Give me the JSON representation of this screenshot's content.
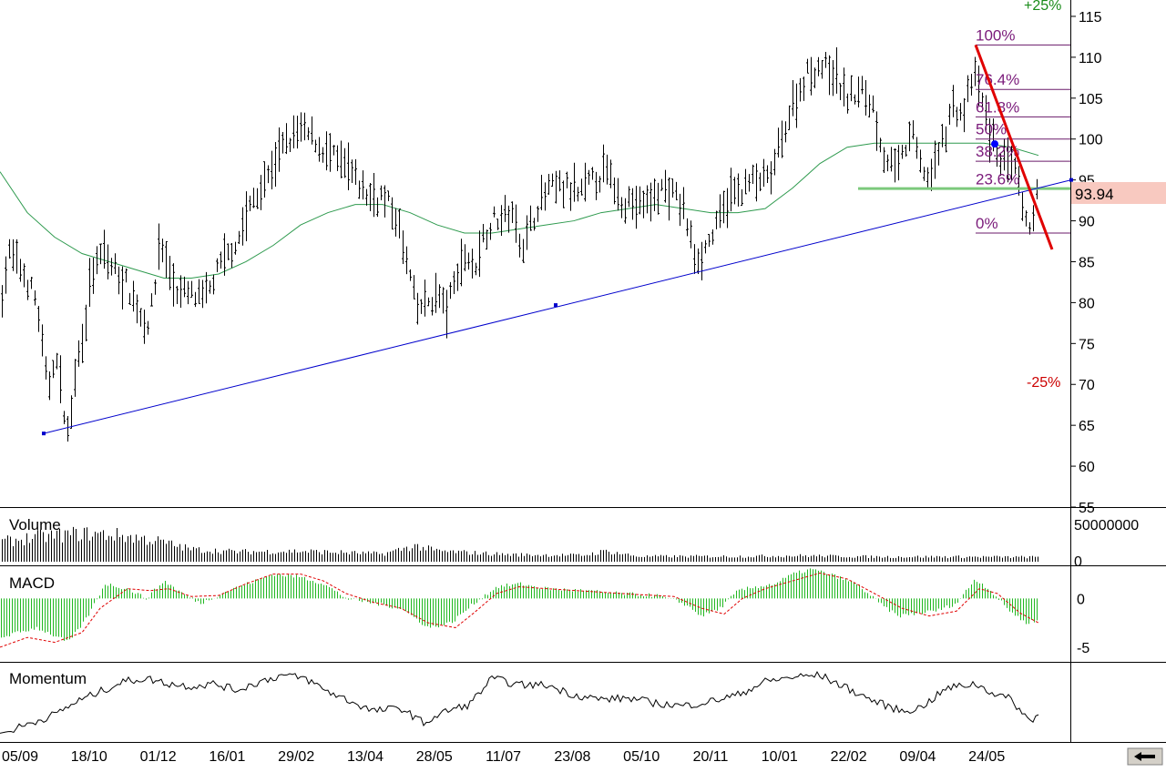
{
  "chart_data": [
    {
      "type": "ohlc",
      "panel": "price",
      "y_ticks": [
        55,
        60,
        65,
        70,
        75,
        80,
        85,
        90,
        95,
        100,
        105,
        110,
        115
      ],
      "ylim": [
        55,
        117
      ],
      "x_tick_labels": [
        "05/09",
        "18/10",
        "01/12",
        "16/01",
        "29/02",
        "13/04",
        "28/05",
        "11/07",
        "23/08",
        "05/10",
        "20/11",
        "10/01",
        "22/02",
        "09/04",
        "24/05"
      ],
      "last_price": "93.94",
      "price_path": [
        [
          0,
          80
        ],
        [
          10,
          86
        ],
        [
          28,
          83
        ],
        [
          40,
          80
        ],
        [
          52,
          69
        ],
        [
          60,
          74
        ],
        [
          70,
          67
        ],
        [
          75,
          63
        ],
        [
          80,
          70
        ],
        [
          90,
          76
        ],
        [
          100,
          83
        ],
        [
          112,
          86
        ],
        [
          125,
          84
        ],
        [
          140,
          82
        ],
        [
          152,
          79
        ],
        [
          160,
          77
        ],
        [
          168,
          80
        ],
        [
          175,
          88
        ],
        [
          182,
          85
        ],
        [
          195,
          81
        ],
        [
          210,
          81
        ],
        [
          222,
          80
        ],
        [
          235,
          83
        ],
        [
          250,
          86
        ],
        [
          262,
          88
        ],
        [
          275,
          92
        ],
        [
          292,
          95
        ],
        [
          305,
          98
        ],
        [
          318,
          100
        ],
        [
          330,
          101
        ],
        [
          345,
          100
        ],
        [
          360,
          98
        ],
        [
          375,
          97
        ],
        [
          390,
          95
        ],
        [
          405,
          93
        ],
        [
          420,
          93
        ],
        [
          432,
          91
        ],
        [
          440,
          88
        ],
        [
          450,
          83
        ],
        [
          458,
          79
        ],
        [
          468,
          80
        ],
        [
          480,
          81
        ],
        [
          490,
          79
        ],
        [
          500,
          83
        ],
        [
          510,
          86
        ],
        [
          520,
          84
        ],
        [
          530,
          88
        ],
        [
          540,
          90
        ],
        [
          560,
          91
        ],
        [
          575,
          87
        ],
        [
          590,
          92
        ],
        [
          605,
          94
        ],
        [
          620,
          94
        ],
        [
          635,
          93
        ],
        [
          650,
          95
        ],
        [
          665,
          96
        ],
        [
          680,
          93
        ],
        [
          695,
          92
        ],
        [
          710,
          92
        ],
        [
          725,
          94
        ],
        [
          740,
          93
        ],
        [
          752,
          91
        ],
        [
          760,
          86
        ],
        [
          770,
          86
        ],
        [
          785,
          89
        ],
        [
          800,
          93
        ],
        [
          815,
          94
        ],
        [
          828,
          95
        ],
        [
          845,
          95
        ],
        [
          860,
          101
        ],
        [
          870,
          104
        ],
        [
          885,
          108
        ],
        [
          900,
          109
        ],
        [
          915,
          108
        ],
        [
          930,
          105
        ],
        [
          945,
          106
        ],
        [
          958,
          104
        ],
        [
          970,
          98
        ],
        [
          985,
          96
        ],
        [
          1000,
          101
        ],
        [
          1010,
          97
        ],
        [
          1020,
          95
        ],
        [
          1032,
          99
        ],
        [
          1045,
          104
        ],
        [
          1058,
          103
        ],
        [
          1068,
          108
        ],
        [
          1075,
          106
        ],
        [
          1085,
          101
        ],
        [
          1095,
          98
        ],
        [
          1105,
          97
        ],
        [
          1115,
          96
        ],
        [
          1125,
          89
        ],
        [
          1132,
          90
        ],
        [
          1140,
          94
        ]
      ],
      "moving_average_path": [
        [
          0,
          96
        ],
        [
          30,
          91
        ],
        [
          60,
          88
        ],
        [
          90,
          86
        ],
        [
          120,
          85
        ],
        [
          150,
          84
        ],
        [
          180,
          83
        ],
        [
          210,
          83
        ],
        [
          240,
          83.5
        ],
        [
          270,
          85
        ],
        [
          300,
          87
        ],
        [
          330,
          89.5
        ],
        [
          360,
          91
        ],
        [
          390,
          92
        ],
        [
          420,
          92
        ],
        [
          450,
          91
        ],
        [
          480,
          89.5
        ],
        [
          510,
          88.5
        ],
        [
          540,
          88.5
        ],
        [
          570,
          89
        ],
        [
          600,
          89.5
        ],
        [
          630,
          90
        ],
        [
          660,
          91
        ],
        [
          690,
          91.5
        ],
        [
          720,
          92
        ],
        [
          750,
          91.5
        ],
        [
          780,
          91
        ],
        [
          810,
          91
        ],
        [
          840,
          91.5
        ],
        [
          870,
          94
        ],
        [
          900,
          97
        ],
        [
          930,
          99
        ],
        [
          960,
          99.5
        ],
        [
          990,
          99.5
        ],
        [
          1020,
          99.5
        ],
        [
          1050,
          99.5
        ],
        [
          1080,
          99.5
        ],
        [
          1110,
          99
        ],
        [
          1140,
          98
        ]
      ],
      "support_trendline": {
        "from": [
          48,
          64
        ],
        "to": [
          1176,
          95
        ]
      },
      "trendline_midpoint": [
        610,
        79.7
      ],
      "falling_trendline": {
        "from": [
          1071,
          111.5
        ],
        "to": [
          1155,
          86.5
        ]
      },
      "horizontal_support_level": 93.94,
      "fibonacci": {
        "high": 111.5,
        "low": 88.5,
        "x_start": 1071,
        "levels": [
          {
            "label": "100%",
            "value": 111.5
          },
          {
            "label": "76.4%",
            "value": 106.07
          },
          {
            "label": "61.8%",
            "value": 102.71
          },
          {
            "label": "50%",
            "value": 100.0
          },
          {
            "label": "38.2%",
            "value": 97.29
          },
          {
            "label": "23.6%",
            "value": 93.93
          },
          {
            "label": "0%",
            "value": 88.5
          }
        ]
      },
      "annotations": {
        "plus_25": "+25%",
        "minus_25": "-25%"
      }
    },
    {
      "type": "bar",
      "panel": "volume",
      "title": "Volume",
      "y_tick_labels": [
        "50000000",
        "0"
      ],
      "relative_levels": [
        [
          0,
          0.55
        ],
        [
          40,
          0.7
        ],
        [
          90,
          0.8
        ],
        [
          130,
          0.75
        ],
        [
          170,
          0.6
        ],
        [
          210,
          0.35
        ],
        [
          260,
          0.28
        ],
        [
          330,
          0.3
        ],
        [
          420,
          0.22
        ],
        [
          455,
          0.45
        ],
        [
          480,
          0.3
        ],
        [
          560,
          0.2
        ],
        [
          640,
          0.18
        ],
        [
          665,
          0.3
        ],
        [
          700,
          0.15
        ],
        [
          800,
          0.15
        ],
        [
          880,
          0.17
        ],
        [
          960,
          0.14
        ],
        [
          1050,
          0.14
        ],
        [
          1140,
          0.13
        ]
      ]
    },
    {
      "type": "bar",
      "panel": "macd",
      "title": "MACD",
      "y_ticks": [
        0,
        -5
      ],
      "ylim": [
        -6.5,
        3.3
      ],
      "histogram_path": [
        [
          0,
          -4
        ],
        [
          40,
          -3
        ],
        [
          75,
          -4.5
        ],
        [
          95,
          -2
        ],
        [
          115,
          1.5
        ],
        [
          140,
          1
        ],
        [
          160,
          0
        ],
        [
          180,
          1.8
        ],
        [
          200,
          0.5
        ],
        [
          220,
          -0.5
        ],
        [
          250,
          0.8
        ],
        [
          280,
          1.8
        ],
        [
          300,
          2.5
        ],
        [
          330,
          2.2
        ],
        [
          355,
          1.5
        ],
        [
          380,
          0
        ],
        [
          410,
          -0.5
        ],
        [
          440,
          -1
        ],
        [
          470,
          -3
        ],
        [
          495,
          -2.5
        ],
        [
          520,
          -0.5
        ],
        [
          545,
          1.2
        ],
        [
          570,
          1.5
        ],
        [
          600,
          1
        ],
        [
          640,
          0.8
        ],
        [
          680,
          0.5
        ],
        [
          720,
          0.3
        ],
        [
          750,
          -0.5
        ],
        [
          770,
          -1.8
        ],
        [
          790,
          -1
        ],
        [
          810,
          0.8
        ],
        [
          830,
          1.2
        ],
        [
          850,
          1.5
        ],
        [
          870,
          2.5
        ],
        [
          890,
          3
        ],
        [
          910,
          2.5
        ],
        [
          940,
          1.5
        ],
        [
          965,
          -0.5
        ],
        [
          985,
          -1.8
        ],
        [
          1010,
          -1.5
        ],
        [
          1030,
          -1.2
        ],
        [
          1050,
          -0.5
        ],
        [
          1070,
          2
        ],
        [
          1085,
          1
        ],
        [
          1105,
          -1
        ],
        [
          1125,
          -2.5
        ],
        [
          1140,
          -2.2
        ]
      ],
      "signal_path": [
        [
          0,
          -5
        ],
        [
          30,
          -4
        ],
        [
          60,
          -4.5
        ],
        [
          90,
          -3.5
        ],
        [
          110,
          -1
        ],
        [
          140,
          1
        ],
        [
          165,
          0.8
        ],
        [
          185,
          1
        ],
        [
          210,
          0.2
        ],
        [
          240,
          0.3
        ],
        [
          270,
          1.5
        ],
        [
          300,
          2.5
        ],
        [
          330,
          2.5
        ],
        [
          355,
          1.8
        ],
        [
          380,
          0.5
        ],
        [
          410,
          -0.4
        ],
        [
          440,
          -1
        ],
        [
          470,
          -2.5
        ],
        [
          500,
          -3
        ],
        [
          520,
          -1.5
        ],
        [
          545,
          0.5
        ],
        [
          570,
          1.2
        ],
        [
          600,
          1
        ],
        [
          650,
          0.7
        ],
        [
          700,
          0.4
        ],
        [
          740,
          0.2
        ],
        [
          770,
          -1
        ],
        [
          795,
          -1.6
        ],
        [
          815,
          0
        ],
        [
          840,
          1
        ],
        [
          870,
          1.8
        ],
        [
          900,
          2.6
        ],
        [
          930,
          2
        ],
        [
          960,
          0.5
        ],
        [
          990,
          -1
        ],
        [
          1020,
          -1.8
        ],
        [
          1050,
          -1.3
        ],
        [
          1075,
          1
        ],
        [
          1095,
          0.5
        ],
        [
          1120,
          -1.5
        ],
        [
          1140,
          -2.5
        ]
      ]
    },
    {
      "type": "line",
      "panel": "momentum",
      "title": "Momentum",
      "relative_path": [
        [
          0,
          0.05
        ],
        [
          30,
          0.2
        ],
        [
          60,
          0.35
        ],
        [
          85,
          0.55
        ],
        [
          110,
          0.7
        ],
        [
          135,
          0.85
        ],
        [
          160,
          0.9
        ],
        [
          185,
          0.82
        ],
        [
          210,
          0.78
        ],
        [
          235,
          0.82
        ],
        [
          260,
          0.72
        ],
        [
          285,
          0.85
        ],
        [
          310,
          0.95
        ],
        [
          335,
          0.9
        ],
        [
          360,
          0.7
        ],
        [
          385,
          0.55
        ],
        [
          410,
          0.4
        ],
        [
          440,
          0.45
        ],
        [
          465,
          0.22
        ],
        [
          490,
          0.4
        ],
        [
          515,
          0.5
        ],
        [
          540,
          0.9
        ],
        [
          570,
          0.8
        ],
        [
          600,
          0.8
        ],
        [
          630,
          0.65
        ],
        [
          660,
          0.58
        ],
        [
          690,
          0.6
        ],
        [
          720,
          0.52
        ],
        [
          750,
          0.48
        ],
        [
          780,
          0.55
        ],
        [
          810,
          0.65
        ],
        [
          840,
          0.85
        ],
        [
          870,
          0.92
        ],
        [
          900,
          0.95
        ],
        [
          930,
          0.75
        ],
        [
          960,
          0.55
        ],
        [
          990,
          0.4
        ],
        [
          1010,
          0.45
        ],
        [
          1040,
          0.75
        ],
        [
          1070,
          0.82
        ],
        [
          1090,
          0.68
        ],
        [
          1110,
          0.58
        ],
        [
          1130,
          0.25
        ],
        [
          1140,
          0.35
        ]
      ]
    }
  ],
  "ui": {
    "scroll_icon": "left-arrow-icon"
  }
}
